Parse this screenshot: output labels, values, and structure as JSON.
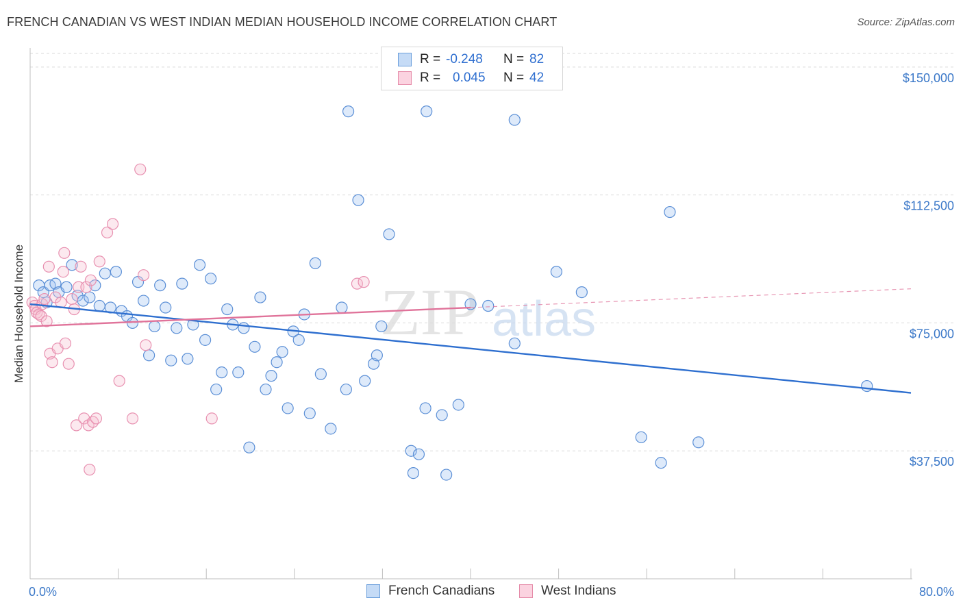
{
  "title": "FRENCH CANADIAN VS WEST INDIAN MEDIAN HOUSEHOLD INCOME CORRELATION CHART",
  "source": "Source: ZipAtlas.com",
  "watermark": {
    "zip": "ZIP",
    "atlas": "atlas"
  },
  "legend": {
    "rows": [
      {
        "r_label": "R =",
        "r_value": "-0.248",
        "n_label": "N =",
        "n_value": "82",
        "color": "#a9c8f0",
        "border": "#6a9edb"
      },
      {
        "r_label": "R =",
        "r_value": "0.045",
        "n_label": "N =",
        "n_value": "42",
        "color": "#f7c0d2",
        "border": "#e58aa8"
      }
    ]
  },
  "bottom_legend": {
    "french": "French Canadians",
    "west": "West Indians"
  },
  "colors": {
    "blue": "#5b8fd6",
    "blue_fill": "rgba(160,196,240,0.35)",
    "blue_line": "#2e6fcf",
    "pink": "#e890b0",
    "pink_fill": "rgba(247,192,210,0.35)",
    "pink_line": "#e0739a",
    "axis_text": "#3b78c8"
  },
  "chart_data": {
    "type": "scatter",
    "xlabel": "",
    "ylabel": "Median Household Income",
    "xlim": [
      0,
      80
    ],
    "ylim": [
      0,
      157000
    ],
    "x_ticks": [
      "0.0%",
      "80.0%"
    ],
    "y_ticks": [
      {
        "value": 150000,
        "label": "$150,000"
      },
      {
        "value": 112500,
        "label": "$112,500"
      },
      {
        "value": 75000,
        "label": "$75,000"
      },
      {
        "value": 37500,
        "label": "$37,500"
      }
    ],
    "series": [
      {
        "name": "French Canadians",
        "points": [
          [
            0.8,
            86000
          ],
          [
            1.2,
            84000
          ],
          [
            1.5,
            81000
          ],
          [
            1.8,
            86000
          ],
          [
            2.3,
            86500
          ],
          [
            2.6,
            84000
          ],
          [
            3.3,
            85500
          ],
          [
            3.8,
            92000
          ],
          [
            4.3,
            83000
          ],
          [
            4.8,
            81500
          ],
          [
            5.4,
            82500
          ],
          [
            5.9,
            86000
          ],
          [
            6.3,
            80000
          ],
          [
            6.8,
            89500
          ],
          [
            7.3,
            79500
          ],
          [
            7.8,
            90000
          ],
          [
            8.3,
            78500
          ],
          [
            8.8,
            77000
          ],
          [
            9.3,
            75000
          ],
          [
            9.8,
            87000
          ],
          [
            10.3,
            81500
          ],
          [
            10.8,
            65500
          ],
          [
            11.3,
            74000
          ],
          [
            11.8,
            86000
          ],
          [
            12.3,
            79500
          ],
          [
            12.8,
            64000
          ],
          [
            13.3,
            73500
          ],
          [
            13.8,
            86500
          ],
          [
            14.3,
            64500
          ],
          [
            14.8,
            74500
          ],
          [
            15.4,
            92000
          ],
          [
            15.9,
            70000
          ],
          [
            16.4,
            88000
          ],
          [
            16.9,
            55500
          ],
          [
            17.4,
            60500
          ],
          [
            17.9,
            79000
          ],
          [
            18.4,
            74500
          ],
          [
            18.9,
            60500
          ],
          [
            19.4,
            73500
          ],
          [
            19.9,
            38500
          ],
          [
            20.4,
            68000
          ],
          [
            20.9,
            82500
          ],
          [
            21.4,
            55500
          ],
          [
            21.9,
            59500
          ],
          [
            22.4,
            63500
          ],
          [
            22.9,
            66500
          ],
          [
            23.4,
            50000
          ],
          [
            23.9,
            72500
          ],
          [
            24.4,
            70000
          ],
          [
            24.9,
            77500
          ],
          [
            25.4,
            48500
          ],
          [
            25.9,
            92500
          ],
          [
            26.4,
            60000
          ],
          [
            27.3,
            44000
          ],
          [
            28.3,
            79500
          ],
          [
            28.7,
            55500
          ],
          [
            28.9,
            137000
          ],
          [
            29.8,
            111000
          ],
          [
            30.4,
            58000
          ],
          [
            31.2,
            63000
          ],
          [
            31.5,
            65500
          ],
          [
            31.9,
            74000
          ],
          [
            32.6,
            101000
          ],
          [
            34.6,
            37500
          ],
          [
            34.8,
            31000
          ],
          [
            35.3,
            36500
          ],
          [
            35.9,
            50000
          ],
          [
            36.0,
            137000
          ],
          [
            37.4,
            48000
          ],
          [
            37.8,
            30500
          ],
          [
            38.9,
            51000
          ],
          [
            40.0,
            80500
          ],
          [
            41.6,
            80000
          ],
          [
            44.0,
            134500
          ],
          [
            44.0,
            69000
          ],
          [
            47.8,
            90000
          ],
          [
            50.1,
            84000
          ],
          [
            55.5,
            41500
          ],
          [
            57.3,
            34000
          ],
          [
            58.1,
            107500
          ],
          [
            60.7,
            40000
          ],
          [
            76.0,
            56500
          ]
        ]
      },
      {
        "name": "West Indians",
        "points": [
          [
            0.2,
            81000
          ],
          [
            0.4,
            80000
          ],
          [
            0.5,
            79000
          ],
          [
            0.6,
            78000
          ],
          [
            0.8,
            77500
          ],
          [
            1.0,
            77000
          ],
          [
            1.1,
            80500
          ],
          [
            1.3,
            82000
          ],
          [
            1.5,
            75500
          ],
          [
            1.7,
            91500
          ],
          [
            1.8,
            66000
          ],
          [
            2.0,
            63500
          ],
          [
            2.3,
            82500
          ],
          [
            2.5,
            67500
          ],
          [
            2.8,
            81000
          ],
          [
            3.0,
            90000
          ],
          [
            3.1,
            95500
          ],
          [
            3.2,
            69000
          ],
          [
            3.5,
            63000
          ],
          [
            3.8,
            82000
          ],
          [
            4.0,
            79000
          ],
          [
            4.2,
            45000
          ],
          [
            4.4,
            85500
          ],
          [
            4.6,
            91500
          ],
          [
            4.9,
            47000
          ],
          [
            5.1,
            85500
          ],
          [
            5.3,
            45000
          ],
          [
            5.4,
            32000
          ],
          [
            5.5,
            87500
          ],
          [
            5.7,
            46000
          ],
          [
            6.0,
            47000
          ],
          [
            6.3,
            93000
          ],
          [
            7.0,
            101500
          ],
          [
            7.5,
            104000
          ],
          [
            8.1,
            58000
          ],
          [
            9.3,
            47000
          ],
          [
            10.0,
            120000
          ],
          [
            10.3,
            89000
          ],
          [
            10.5,
            68500
          ],
          [
            16.5,
            47000
          ],
          [
            29.7,
            86500
          ],
          [
            30.3,
            87000
          ]
        ]
      }
    ],
    "trend_lines": [
      {
        "series": "French Canadians",
        "from": [
          0,
          80500
        ],
        "to": [
          80,
          54500
        ],
        "style": "solid"
      },
      {
        "series": "West Indians",
        "from": [
          0,
          74000
        ],
        "to": [
          40,
          79500
        ],
        "style": "solid"
      },
      {
        "series": "West Indians",
        "from": [
          40,
          79500
        ],
        "to": [
          80,
          85000
        ],
        "style": "dashed"
      }
    ],
    "grid": "horizontal dashed",
    "legend_position": "top-center"
  }
}
